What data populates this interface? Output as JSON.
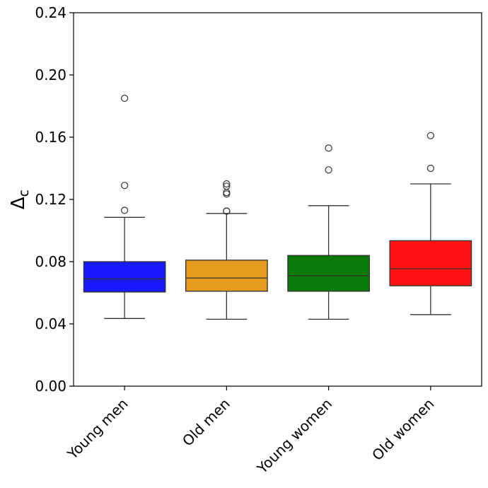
{
  "chart_data": {
    "type": "box",
    "title": "",
    "xlabel": "",
    "ylabel": "Δc",
    "ylabel_main": "Δ",
    "ylabel_sub": "c",
    "ylim": [
      0.0,
      0.24
    ],
    "yticks": [
      0.0,
      0.04,
      0.08,
      0.12,
      0.16,
      0.2,
      0.24
    ],
    "ytick_labels": [
      "0.00",
      "0.04",
      "0.08",
      "0.12",
      "0.16",
      "0.20",
      "0.24"
    ],
    "categories": [
      "Young men",
      "Old men",
      "Young women",
      "Old women"
    ],
    "colors": [
      "#1919ff",
      "#e39b1e",
      "#0b7a0b",
      "#ff1212"
    ],
    "boxes": [
      {
        "label": "Young men",
        "whisker_low": 0.0435,
        "q1": 0.0605,
        "median": 0.069,
        "q3": 0.08,
        "whisker_high": 0.1085,
        "outliers": [
          0.113,
          0.129,
          0.185
        ]
      },
      {
        "label": "Old men",
        "whisker_low": 0.043,
        "q1": 0.061,
        "median": 0.0695,
        "q3": 0.081,
        "whisker_high": 0.111,
        "outliers": [
          0.1125,
          0.1125,
          0.1235,
          0.1245,
          0.1285,
          0.13
        ]
      },
      {
        "label": "Young women",
        "whisker_low": 0.043,
        "q1": 0.061,
        "median": 0.071,
        "q3": 0.084,
        "whisker_high": 0.116,
        "outliers": [
          0.139,
          0.153
        ]
      },
      {
        "label": "Old women",
        "whisker_low": 0.046,
        "q1": 0.0645,
        "median": 0.0755,
        "q3": 0.0935,
        "whisker_high": 0.13,
        "outliers": [
          0.14,
          0.161
        ]
      }
    ]
  }
}
